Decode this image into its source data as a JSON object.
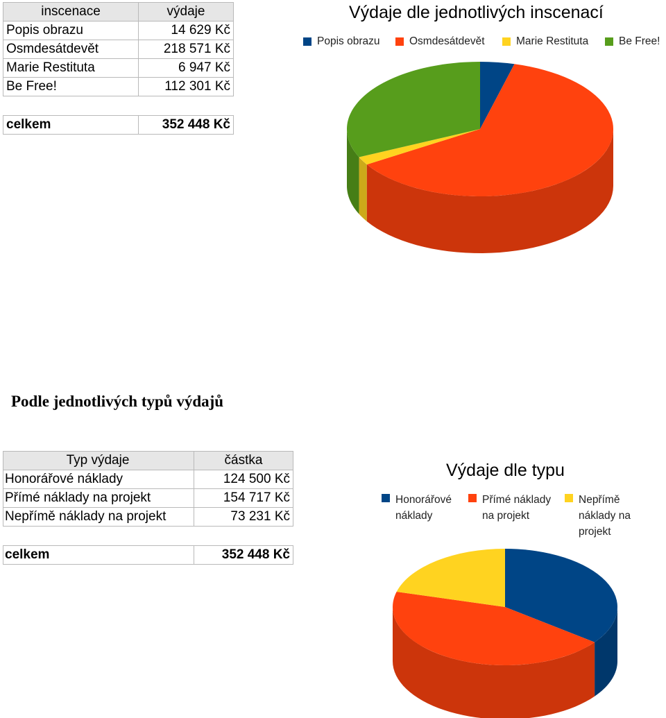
{
  "table1": {
    "headers": [
      "inscenace",
      "výdaje"
    ],
    "rows": [
      [
        "Popis obrazu",
        "14 629 Kč"
      ],
      [
        "Osmdesátdevět",
        "218 571 Kč"
      ],
      [
        "Marie Restituta",
        "6 947 Kč"
      ],
      [
        "Be Free!",
        "112 301 Kč"
      ]
    ],
    "total_label": "celkem",
    "total_value": "352 448 Kč"
  },
  "section2_title": "Podle jednotlivých typů výdajů",
  "table2": {
    "headers": [
      "Typ výdaje",
      "částka"
    ],
    "rows": [
      [
        "Honorářové náklady",
        "124 500 Kč"
      ],
      [
        "Přímé náklady na projekt",
        "154 717 Kč"
      ],
      [
        "Nepřímě náklady na projekt",
        "73 231 Kč"
      ]
    ],
    "total_label": "celkem",
    "total_value": "352 448 Kč"
  },
  "colors": {
    "blue": "#004586",
    "orange": "#ff420e",
    "yellow": "#ffd320",
    "green": "#579d1c"
  },
  "chart_data": [
    {
      "type": "pie",
      "title": "Výdaje dle jednotlivých inscenací",
      "legend_position": "top",
      "categories": [
        "Popis obrazu",
        "Osmdesátdevět",
        "Marie Restituta",
        "Be Free!"
      ],
      "values": [
        14629,
        218571,
        6947,
        112301
      ],
      "colors": [
        "#004586",
        "#ff420e",
        "#ffd320",
        "#579d1c"
      ]
    },
    {
      "type": "pie",
      "title": "Výdaje dle typu",
      "legend_position": "top",
      "categories": [
        "Honorářové náklady",
        "Přímé náklady na projekt",
        "Nepřímě náklady na projekt"
      ],
      "values": [
        124500,
        154717,
        73231
      ],
      "colors": [
        "#004586",
        "#ff420e",
        "#ffd320"
      ]
    }
  ]
}
